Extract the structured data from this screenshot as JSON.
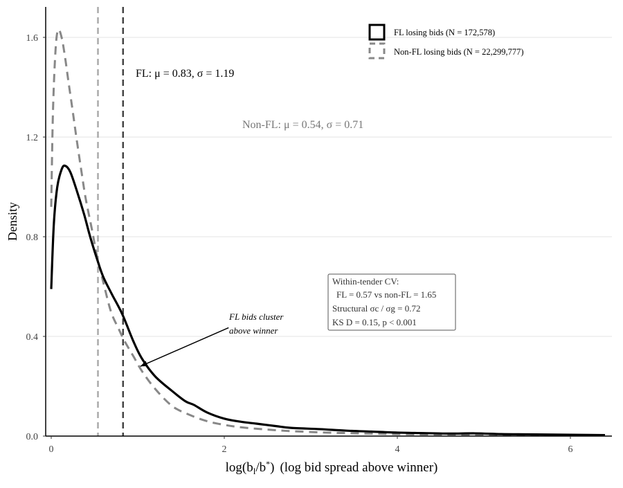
{
  "chart_data": {
    "type": "line",
    "title": "",
    "xlabel": "log(b_l/b*)  (log bid spread above winner)",
    "xlabel_parts": {
      "pre": "log(",
      "b": "b",
      "sub": "l",
      "slash": "/b",
      "sup": "*",
      "post": ")",
      "desc": "(log bid spread above winner)"
    },
    "ylabel": "Density",
    "xlim": [
      -0.1,
      6.45
    ],
    "ylim": [
      0,
      1.72
    ],
    "xticks": [
      0,
      2,
      4,
      6
    ],
    "yticks": [
      0.0,
      0.4,
      0.8,
      1.2,
      1.6
    ],
    "ytick_labels": [
      "0.0",
      "0.4",
      "0.8",
      "1.2",
      "1.6"
    ],
    "xtick_labels": [
      "0",
      "2",
      "4",
      "6"
    ],
    "grid": "horizontal",
    "legend_position": "top-right",
    "series": [
      {
        "name": "FL losing bids (N = 172,578)",
        "color": "#000000",
        "style": "solid",
        "x": [
          0,
          0.03,
          0.07,
          0.12,
          0.16,
          0.22,
          0.3,
          0.38,
          0.45,
          0.53,
          0.6,
          0.7,
          0.82,
          0.95,
          1.05,
          1.2,
          1.4,
          1.55,
          1.65,
          1.8,
          2.0,
          2.2,
          2.37,
          2.6,
          2.77,
          3.1,
          3.4,
          3.7,
          4.0,
          4.3,
          4.6,
          4.9,
          5.2,
          5.5,
          5.8,
          6.1,
          6.4
        ],
        "y": [
          0.59,
          0.85,
          1.0,
          1.07,
          1.085,
          1.06,
          0.98,
          0.89,
          0.8,
          0.71,
          0.64,
          0.57,
          0.49,
          0.38,
          0.31,
          0.24,
          0.18,
          0.14,
          0.125,
          0.095,
          0.07,
          0.057,
          0.05,
          0.04,
          0.033,
          0.028,
          0.022,
          0.018,
          0.014,
          0.012,
          0.01,
          0.011,
          0.008,
          0.007,
          0.006,
          0.005,
          0.004
        ]
      },
      {
        "name": "Non-FL losing bids (N = 22,299,777)",
        "color": "#888888",
        "style": "dashed",
        "x": [
          0,
          0.02,
          0.05,
          0.08,
          0.12,
          0.16,
          0.2,
          0.25,
          0.29,
          0.35,
          0.4,
          0.47,
          0.53,
          0.6,
          0.69,
          0.78,
          0.85,
          0.95,
          1.05,
          1.2,
          1.4,
          1.6,
          1.8,
          2.0,
          2.2,
          2.5,
          2.77,
          3.1,
          3.4,
          3.7,
          4.0,
          4.5,
          5.0,
          5.5,
          6.0,
          6.4
        ],
        "y": [
          0.92,
          1.3,
          1.55,
          1.63,
          1.6,
          1.52,
          1.42,
          1.3,
          1.2,
          1.06,
          0.95,
          0.83,
          0.72,
          0.62,
          0.5,
          0.43,
          0.38,
          0.32,
          0.26,
          0.19,
          0.12,
          0.085,
          0.06,
          0.045,
          0.035,
          0.026,
          0.02,
          0.015,
          0.012,
          0.01,
          0.008,
          0.006,
          0.005,
          0.004,
          0.003,
          0.003
        ]
      }
    ],
    "vlines": [
      {
        "x": 0.54,
        "color": "#aaaaaa",
        "style": "dashed",
        "label": "Non-FL mean"
      },
      {
        "x": 0.83,
        "color": "#444444",
        "style": "dashed",
        "label": "FL mean"
      }
    ],
    "annotations": {
      "fl_stats": "FL: μ = 0.83, σ = 1.19",
      "nonfl_stats": "Non-FL: μ = 0.54, σ = 0.71",
      "arrow_text_line1": "FL bids cluster",
      "arrow_text_line2": "above winner",
      "arrow_from": [
        2.05,
        0.435
      ],
      "arrow_to": [
        1.03,
        0.28
      ],
      "stats_box": [
        "Within-tender CV:",
        "FL = 0.57  vs  non-FL = 1.65",
        "Structural  σc / σg = 0.72",
        "KS D = 0.15,  p < 0.001"
      ]
    }
  }
}
